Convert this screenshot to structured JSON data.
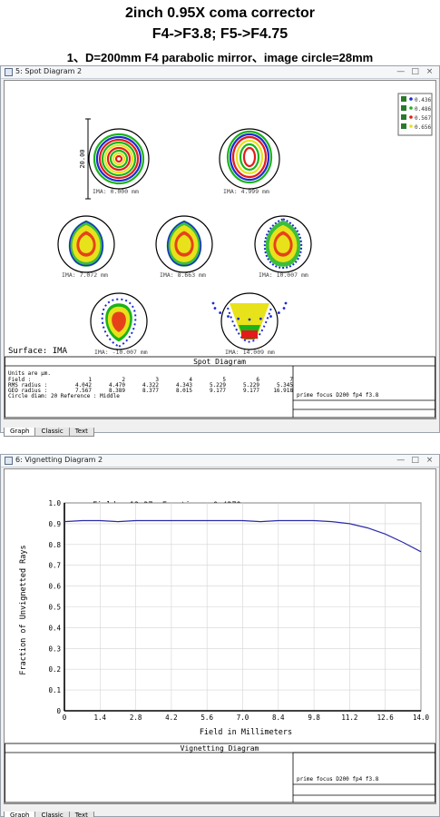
{
  "header": {
    "line1": "2inch 0.95X coma corrector",
    "line2": "F4->F3.8; F5->F4.75",
    "line3": "1、D=200mm F4 parabolic mirror、image circle=28mm"
  },
  "window_controls": {
    "minimize": "—",
    "maximize": "□",
    "close": "×"
  },
  "tabs": [
    "Graph",
    "Classic",
    "Text"
  ],
  "spot_window": {
    "title": "5: Spot Diagram 2",
    "scale_label": "20.00",
    "surface": "Surface: IMA",
    "panel_title": "Spot Diagram",
    "legend": [
      "0.436",
      "0.486",
      "0.567",
      "0.656"
    ],
    "legend_colors": [
      "#1b2bd1",
      "#19b419",
      "#e51a1a",
      "#e8e21a"
    ],
    "spots": [
      {
        "label": "IMA: 0.000 mm"
      },
      {
        "label": "IMA: 4.999 mm"
      },
      {
        "label": "IMA: 7.072 mm"
      },
      {
        "label": "IMA: 8.663 mm"
      },
      {
        "label": "IMA: 10.007 mm"
      },
      {
        "label": "IMA: -10.007 mm"
      },
      {
        "label": "IMA: 14.009 mm"
      }
    ],
    "units_line": "Units are µm.",
    "field_label": "Field      :",
    "fields": [
      "1",
      "2",
      "3",
      "4",
      "5",
      "6",
      "7"
    ],
    "rms_label": "RMS radius :",
    "rms": [
      "4.042",
      "4.470",
      "4.322",
      "4.343",
      "5.229",
      "5.229",
      "5.345"
    ],
    "geo_label": "GEO radius :",
    "geo": [
      "7.567",
      "8.389",
      "8.377",
      "8.015",
      "9.177",
      "9.177",
      "16.918"
    ],
    "circle_line": "Circle diam: 20     Reference  : Middle",
    "note": "prime focus D200 fp4 f3.8"
  },
  "vig_window": {
    "title": "6: Vignetting Diagram 2",
    "readout": "Field = 13.37, Fraction = 0.4279",
    "xlabel": "Field in Millimeters",
    "ylabel": "Fraction of Unvignetted Rays",
    "panel_title": "Vignetting Diagram",
    "note": "prime focus D200 fp4 f3.8"
  },
  "chart_data": {
    "type": "line",
    "title": "Field = 13.37, Fraction = 0.4279",
    "xlabel": "Field in Millimeters",
    "ylabel": "Fraction of Unvignetted Rays",
    "xlim": [
      0,
      14
    ],
    "ylim": [
      0,
      1
    ],
    "x_ticks": [
      "0",
      "1.4",
      "2.8",
      "4.2",
      "5.6",
      "7.0",
      "8.4",
      "9.8",
      "11.2",
      "12.6",
      "14.0"
    ],
    "y_ticks": [
      "0",
      "0.1",
      "0.2",
      "0.3",
      "0.4",
      "0.5",
      "0.6",
      "0.7",
      "0.8",
      "0.9",
      "1.0"
    ],
    "grid": true,
    "color": "#2b2ba8",
    "x": [
      0,
      0.7,
      1.4,
      2.1,
      2.8,
      4.2,
      5.6,
      7.0,
      7.7,
      8.4,
      9.8,
      10.5,
      11.2,
      11.9,
      12.6,
      13.3,
      14.0
    ],
    "y": [
      0.91,
      0.915,
      0.915,
      0.91,
      0.915,
      0.915,
      0.915,
      0.915,
      0.91,
      0.915,
      0.915,
      0.91,
      0.9,
      0.88,
      0.85,
      0.81,
      0.765
    ]
  }
}
